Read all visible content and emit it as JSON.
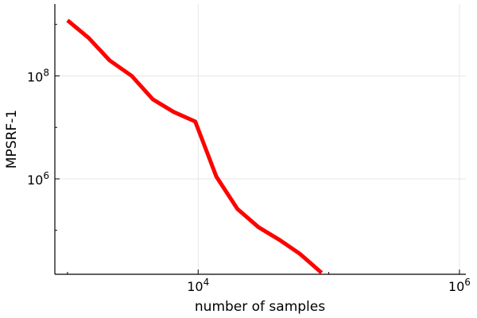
{
  "chart_data": {
    "type": "line",
    "title": "",
    "xlabel": "number of samples",
    "ylabel": "MPSRF-1",
    "xscale": "log10",
    "yscale": "log10",
    "xlim": [
      800,
      1120000
    ],
    "ylim": [
      14000,
      2500000000
    ],
    "grid": true,
    "legend": "none",
    "x_ticks": [
      {
        "value": 10000,
        "base": "10",
        "exp": "4"
      },
      {
        "value": 1000000,
        "base": "10",
        "exp": "6"
      }
    ],
    "y_ticks": [
      {
        "value": 1000000,
        "base": "10",
        "exp": "6"
      },
      {
        "value": 100000000,
        "base": "10",
        "exp": "8"
      }
    ],
    "series": [
      {
        "name": "MPSRF-1",
        "color": "#ff0000",
        "x": [
          1000,
          1450,
          2100,
          3100,
          4500,
          6500,
          9500,
          13800,
          20000,
          29000,
          42000,
          60000,
          88000
        ],
        "y": [
          1200000000,
          550000000,
          200000000,
          100000000,
          35000000,
          20000000,
          13000000,
          1100000,
          260000,
          115000,
          65000,
          35000,
          15000
        ]
      }
    ]
  }
}
